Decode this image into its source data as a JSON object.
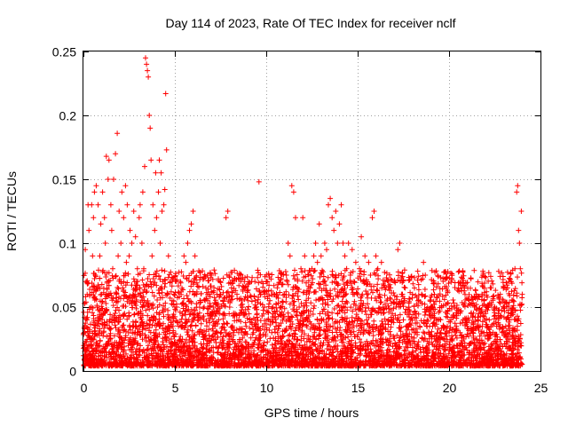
{
  "chart_data": {
    "type": "scatter",
    "title": "Day 114 of 2023, Rate Of TEC Index for receiver nclf",
    "xlabel": "GPS time / hours",
    "ylabel": "ROTI / TECUs",
    "xlim": [
      0,
      25
    ],
    "ylim": [
      0,
      0.25
    ],
    "x_ticks": [
      "0",
      "5",
      "10",
      "15",
      "20",
      "25"
    ],
    "y_ticks": [
      "0",
      "0.05",
      "0.1",
      "0.15",
      "0.2",
      "0.25"
    ],
    "grid": true,
    "marker": "+",
    "color": "#ff0000",
    "points": [
      [
        0.0,
        0.012
      ],
      [
        0.05,
        0.03
      ],
      [
        0.1,
        0.095
      ],
      [
        0.15,
        0.07
      ],
      [
        0.2,
        0.04
      ],
      [
        0.25,
        0.13
      ],
      [
        0.3,
        0.11
      ],
      [
        0.35,
        0.06
      ],
      [
        0.4,
        0.025
      ],
      [
        0.45,
        0.13
      ],
      [
        0.5,
        0.09
      ],
      [
        0.55,
        0.12
      ],
      [
        0.6,
        0.14
      ],
      [
        0.65,
        0.075
      ],
      [
        0.7,
        0.145
      ],
      [
        0.75,
        0.05
      ],
      [
        0.8,
        0.13
      ],
      [
        0.85,
        0.02
      ],
      [
        0.9,
        0.09
      ],
      [
        0.95,
        0.115
      ],
      [
        1.0,
        0.06
      ],
      [
        1.05,
        0.14
      ],
      [
        1.1,
        0.03
      ],
      [
        1.15,
        0.12
      ],
      [
        1.2,
        0.1
      ],
      [
        1.25,
        0.168
      ],
      [
        1.3,
        0.07
      ],
      [
        1.35,
        0.15
      ],
      [
        1.4,
        0.165
      ],
      [
        1.45,
        0.04
      ],
      [
        1.5,
        0.13
      ],
      [
        1.55,
        0.11
      ],
      [
        1.6,
        0.08
      ],
      [
        1.65,
        0.15
      ],
      [
        1.7,
        0.02
      ],
      [
        1.75,
        0.17
      ],
      [
        1.8,
        0.06
      ],
      [
        1.85,
        0.186
      ],
      [
        1.9,
        0.09
      ],
      [
        1.95,
        0.125
      ],
      [
        2.0,
        0.03
      ],
      [
        2.05,
        0.1
      ],
      [
        2.1,
        0.14
      ],
      [
        2.15,
        0.065
      ],
      [
        2.2,
        0.12
      ],
      [
        2.25,
        0.045
      ],
      [
        2.3,
        0.145
      ],
      [
        2.35,
        0.085
      ],
      [
        2.4,
        0.13
      ],
      [
        2.45,
        0.02
      ],
      [
        2.5,
        0.09
      ],
      [
        2.55,
        0.11
      ],
      [
        2.6,
        0.055
      ],
      [
        2.65,
        0.1
      ],
      [
        2.7,
        0.035
      ],
      [
        2.75,
        0.125
      ],
      [
        2.8,
        0.07
      ],
      [
        2.85,
        0.105
      ],
      [
        2.9,
        0.015
      ],
      [
        2.95,
        0.08
      ],
      [
        3.0,
        0.06
      ],
      [
        3.05,
        0.12
      ],
      [
        3.1,
        0.13
      ],
      [
        3.15,
        0.045
      ],
      [
        3.2,
        0.1
      ],
      [
        3.25,
        0.14
      ],
      [
        3.3,
        0.08
      ],
      [
        3.35,
        0.16
      ],
      [
        3.4,
        0.245
      ],
      [
        3.45,
        0.24
      ],
      [
        3.5,
        0.235
      ],
      [
        3.55,
        0.23
      ],
      [
        3.6,
        0.2
      ],
      [
        3.65,
        0.19
      ],
      [
        3.7,
        0.165
      ],
      [
        3.75,
        0.09
      ],
      [
        3.8,
        0.13
      ],
      [
        3.85,
        0.03
      ],
      [
        3.9,
        0.11
      ],
      [
        3.95,
        0.155
      ],
      [
        4.0,
        0.12
      ],
      [
        4.05,
        0.05
      ],
      [
        4.1,
        0.14
      ],
      [
        4.15,
        0.165
      ],
      [
        4.2,
        0.1
      ],
      [
        4.25,
        0.155
      ],
      [
        4.3,
        0.125
      ],
      [
        4.35,
        0.07
      ],
      [
        4.4,
        0.13
      ],
      [
        4.45,
        0.142
      ],
      [
        4.5,
        0.217
      ],
      [
        4.55,
        0.173
      ],
      [
        4.6,
        0.06
      ],
      [
        4.65,
        0.09
      ],
      [
        4.7,
        0.04
      ],
      [
        4.75,
        0.07
      ],
      [
        4.8,
        0.025
      ],
      [
        4.85,
        0.055
      ],
      [
        4.9,
        0.03
      ],
      [
        4.95,
        0.06
      ],
      [
        5.0,
        0.02
      ],
      [
        5.1,
        0.05
      ],
      [
        5.2,
        0.035
      ],
      [
        5.3,
        0.07
      ],
      [
        5.4,
        0.045
      ],
      [
        5.5,
        0.09
      ],
      [
        5.6,
        0.085
      ],
      [
        5.7,
        0.1
      ],
      [
        5.8,
        0.11
      ],
      [
        5.9,
        0.115
      ],
      [
        6.0,
        0.125
      ],
      [
        6.1,
        0.09
      ],
      [
        6.2,
        0.06
      ],
      [
        6.3,
        0.04
      ],
      [
        6.4,
        0.055
      ],
      [
        6.5,
        0.03
      ],
      [
        6.6,
        0.05
      ],
      [
        6.7,
        0.065
      ],
      [
        6.8,
        0.045
      ],
      [
        6.9,
        0.06
      ],
      [
        7.0,
        0.075
      ],
      [
        7.1,
        0.05
      ],
      [
        7.2,
        0.035
      ],
      [
        7.3,
        0.06
      ],
      [
        7.4,
        0.04
      ],
      [
        7.5,
        0.06
      ],
      [
        7.6,
        0.025
      ],
      [
        7.7,
        0.045
      ],
      [
        7.8,
        0.12
      ],
      [
        7.9,
        0.125
      ],
      [
        8.0,
        0.05
      ],
      [
        8.1,
        0.065
      ],
      [
        8.2,
        0.03
      ],
      [
        8.3,
        0.045
      ],
      [
        8.4,
        0.06
      ],
      [
        8.5,
        0.04
      ],
      [
        8.6,
        0.075
      ],
      [
        8.7,
        0.05
      ],
      [
        8.8,
        0.065
      ],
      [
        8.9,
        0.035
      ],
      [
        9.0,
        0.055
      ],
      [
        9.1,
        0.04
      ],
      [
        9.2,
        0.07
      ],
      [
        9.3,
        0.03
      ],
      [
        9.4,
        0.055
      ],
      [
        9.5,
        0.045
      ],
      [
        9.6,
        0.148
      ],
      [
        9.7,
        0.06
      ],
      [
        9.8,
        0.035
      ],
      [
        9.9,
        0.05
      ],
      [
        10.0,
        0.07
      ],
      [
        10.1,
        0.04
      ],
      [
        10.2,
        0.055
      ],
      [
        10.3,
        0.03
      ],
      [
        10.4,
        0.06
      ],
      [
        10.5,
        0.045
      ],
      [
        10.6,
        0.065
      ],
      [
        10.7,
        0.035
      ],
      [
        10.8,
        0.05
      ],
      [
        10.9,
        0.04
      ],
      [
        11.0,
        0.06
      ],
      [
        11.1,
        0.075
      ],
      [
        11.2,
        0.1
      ],
      [
        11.3,
        0.09
      ],
      [
        11.4,
        0.145
      ],
      [
        11.5,
        0.14
      ],
      [
        11.6,
        0.12
      ],
      [
        11.7,
        0.065
      ],
      [
        11.8,
        0.05
      ],
      [
        11.9,
        0.08
      ],
      [
        12.0,
        0.12
      ],
      [
        12.1,
        0.09
      ],
      [
        12.2,
        0.06
      ],
      [
        12.3,
        0.005
      ],
      [
        12.4,
        0.065
      ],
      [
        12.5,
        0.08
      ],
      [
        12.6,
        0.09
      ],
      [
        12.7,
        0.1
      ],
      [
        12.8,
        0.085
      ],
      [
        12.9,
        0.115
      ],
      [
        13.0,
        0.09
      ],
      [
        13.1,
        0.07
      ],
      [
        13.2,
        0.1
      ],
      [
        13.3,
        0.095
      ],
      [
        13.4,
        0.13
      ],
      [
        13.5,
        0.135
      ],
      [
        13.6,
        0.12
      ],
      [
        13.7,
        0.11
      ],
      [
        13.8,
        0.125
      ],
      [
        13.9,
        0.1
      ],
      [
        14.0,
        0.115
      ],
      [
        14.1,
        0.13
      ],
      [
        14.2,
        0.1
      ],
      [
        14.3,
        0.09
      ],
      [
        14.4,
        0.08
      ],
      [
        14.5,
        0.1
      ],
      [
        14.6,
        0.075
      ],
      [
        14.7,
        0.095
      ],
      [
        14.8,
        0.07
      ],
      [
        14.9,
        0.085
      ],
      [
        15.0,
        0.06
      ],
      [
        15.1,
        0.08
      ],
      [
        15.2,
        0.105
      ],
      [
        15.3,
        0.07
      ],
      [
        15.4,
        0.09
      ],
      [
        15.5,
        0.06
      ],
      [
        15.6,
        0.085
      ],
      [
        15.7,
        0.075
      ],
      [
        15.8,
        0.12
      ],
      [
        15.9,
        0.125
      ],
      [
        16.0,
        0.09
      ],
      [
        16.1,
        0.08
      ],
      [
        16.2,
        0.06
      ],
      [
        16.3,
        0.085
      ],
      [
        16.4,
        0.05
      ],
      [
        16.5,
        0.07
      ],
      [
        16.6,
        0.055
      ],
      [
        16.7,
        0.04
      ],
      [
        16.8,
        0.065
      ],
      [
        16.9,
        0.045
      ],
      [
        17.0,
        0.07
      ],
      [
        17.1,
        0.05
      ],
      [
        17.2,
        0.095
      ],
      [
        17.3,
        0.1
      ],
      [
        17.4,
        0.06
      ],
      [
        17.5,
        0.04
      ],
      [
        17.6,
        0.065
      ],
      [
        17.7,
        0.035
      ],
      [
        17.8,
        0.05
      ],
      [
        17.9,
        0.04
      ],
      [
        18.0,
        0.06
      ],
      [
        18.1,
        0.03
      ],
      [
        18.2,
        0.045
      ],
      [
        18.3,
        0.055
      ],
      [
        18.4,
        0.035
      ],
      [
        18.5,
        0.06
      ],
      [
        18.6,
        0.085
      ],
      [
        18.7,
        0.075
      ],
      [
        18.8,
        0.04
      ],
      [
        18.9,
        0.03
      ],
      [
        19.0,
        0.05
      ],
      [
        19.1,
        0.035
      ],
      [
        19.2,
        0.06
      ],
      [
        19.3,
        0.025
      ],
      [
        19.4,
        0.04
      ],
      [
        19.5,
        0.03
      ],
      [
        19.6,
        0.05
      ],
      [
        19.7,
        0.035
      ],
      [
        19.8,
        0.025
      ],
      [
        19.9,
        0.045
      ],
      [
        20.0,
        0.03
      ],
      [
        20.1,
        0.04
      ],
      [
        20.2,
        0.025
      ],
      [
        20.3,
        0.05
      ],
      [
        20.4,
        0.035
      ],
      [
        20.5,
        0.045
      ],
      [
        20.6,
        0.03
      ],
      [
        20.7,
        0.065
      ],
      [
        20.8,
        0.025
      ],
      [
        20.9,
        0.04
      ],
      [
        21.0,
        0.035
      ],
      [
        21.1,
        0.02
      ],
      [
        21.2,
        0.045
      ],
      [
        21.3,
        0.03
      ],
      [
        21.4,
        0.05
      ],
      [
        21.5,
        0.025
      ],
      [
        21.6,
        0.04
      ],
      [
        21.7,
        0.035
      ],
      [
        21.8,
        0.06
      ],
      [
        21.9,
        0.03
      ],
      [
        22.0,
        0.045
      ],
      [
        22.1,
        0.025
      ],
      [
        22.2,
        0.04
      ],
      [
        22.3,
        0.065
      ],
      [
        22.4,
        0.03
      ],
      [
        22.5,
        0.05
      ],
      [
        22.6,
        0.035
      ],
      [
        22.7,
        0.045
      ],
      [
        22.8,
        0.06
      ],
      [
        22.9,
        0.03
      ],
      [
        23.0,
        0.05
      ],
      [
        23.1,
        0.035
      ],
      [
        23.2,
        0.065
      ],
      [
        23.3,
        0.04
      ],
      [
        23.4,
        0.07
      ],
      [
        23.5,
        0.055
      ],
      [
        23.6,
        0.08
      ],
      [
        23.7,
        0.14
      ],
      [
        23.75,
        0.145
      ],
      [
        23.8,
        0.11
      ],
      [
        23.85,
        0.1
      ],
      [
        23.9,
        0.08
      ],
      [
        23.95,
        0.125
      ],
      [
        24.0,
        0.06
      ]
    ]
  }
}
